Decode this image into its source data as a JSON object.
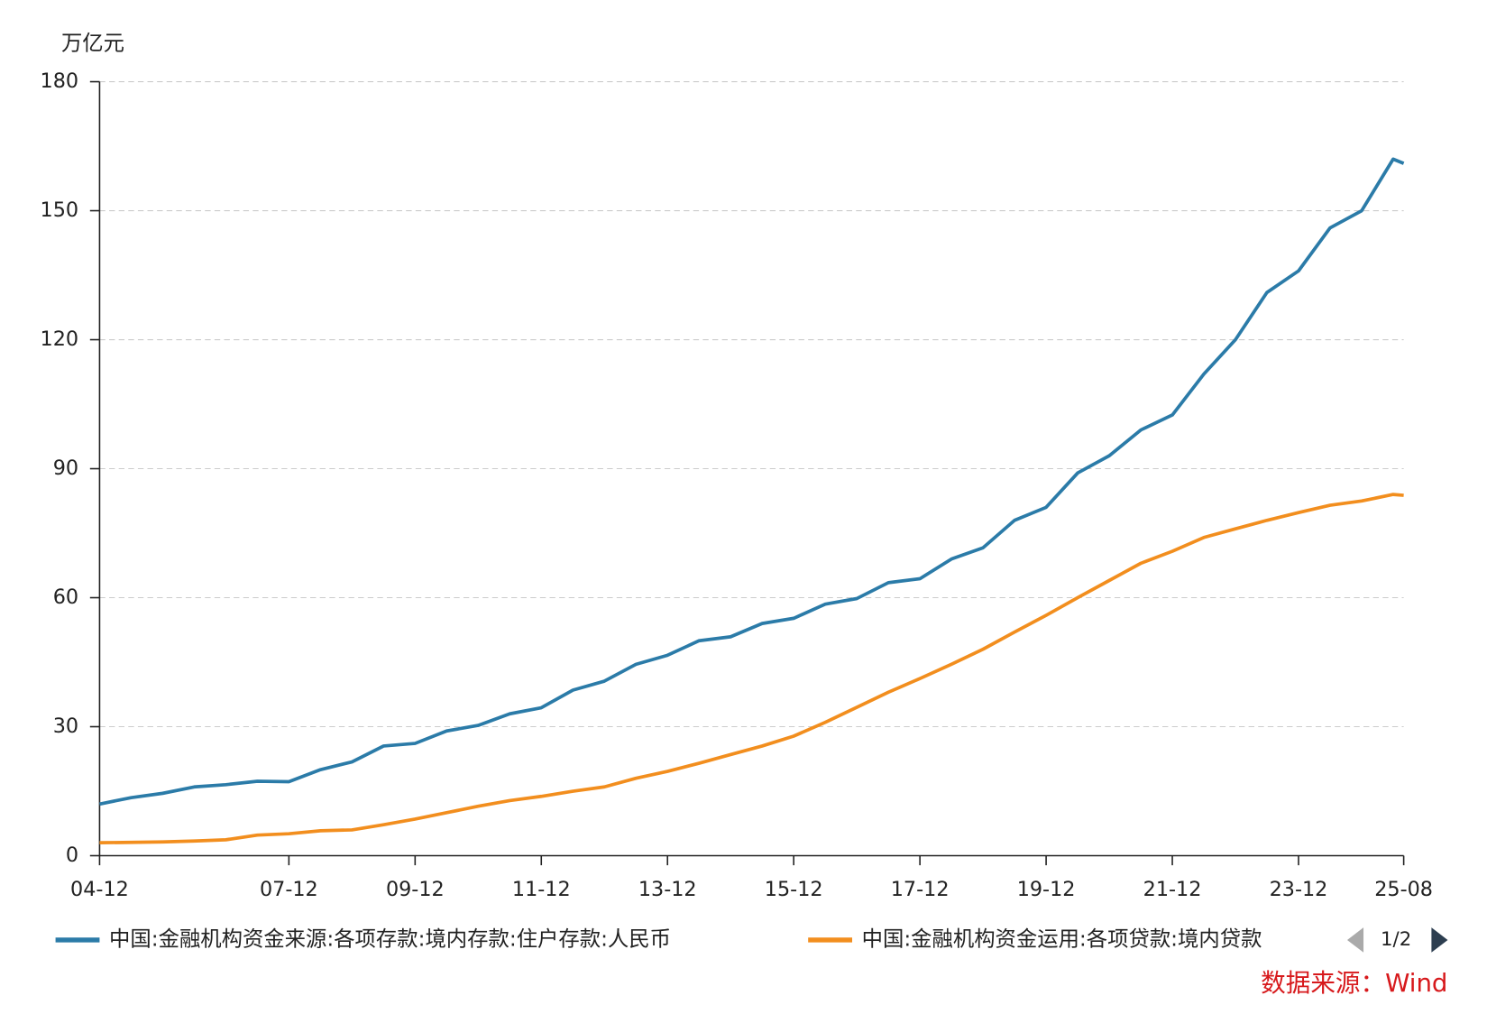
{
  "chart_data": {
    "type": "line",
    "y_unit": "万亿元",
    "x": [
      "04-12",
      "05-06",
      "05-12",
      "06-06",
      "06-12",
      "07-06",
      "07-12",
      "08-06",
      "08-12",
      "09-06",
      "09-12",
      "10-06",
      "10-12",
      "11-06",
      "11-12",
      "12-06",
      "12-12",
      "13-06",
      "13-12",
      "14-06",
      "14-12",
      "15-06",
      "15-12",
      "16-06",
      "16-12",
      "17-06",
      "17-12",
      "18-06",
      "18-12",
      "19-06",
      "19-12",
      "20-06",
      "20-12",
      "21-06",
      "21-12",
      "22-06",
      "22-12",
      "23-06",
      "23-12",
      "24-06",
      "24-12",
      "25-06",
      "25-08"
    ],
    "series": [
      {
        "name": "中国:金融机构资金来源:各项存款:境内存款:住户存款:人民币",
        "color": "#2b7ba8",
        "values": [
          12,
          13.5,
          14.5,
          16,
          16.5,
          17.3,
          17.2,
          20,
          21.8,
          25.5,
          26.1,
          29,
          30.3,
          33,
          34.4,
          38.5,
          40.6,
          44.5,
          46.6,
          50,
          50.9,
          54,
          55.2,
          58.5,
          59.8,
          63.5,
          64.4,
          69,
          71.6,
          78,
          81,
          89,
          93,
          99,
          102.5,
          112,
          120,
          131,
          136,
          146,
          150,
          162,
          161
        ]
      },
      {
        "name": "中国:金融机构资金运用:各项贷款:境内贷款",
        "color": "#f28e1e",
        "values": [
          3,
          3.1,
          3.2,
          3.4,
          3.7,
          4.8,
          5.1,
          5.8,
          6,
          7.2,
          8.5,
          10,
          11.5,
          12.8,
          13.8,
          15,
          16,
          18,
          19.6,
          21.5,
          23.5,
          25.5,
          27.8,
          31,
          34.5,
          38,
          41.2,
          44.5,
          48,
          52,
          55.9,
          60,
          64,
          68,
          70.8,
          74,
          76,
          78,
          79.8,
          81.5,
          82.5,
          84,
          83.8
        ]
      }
    ],
    "xlim": [
      "04-12",
      "25-08"
    ],
    "xticks": [
      "04-12",
      "07-12",
      "09-12",
      "11-12",
      "13-12",
      "15-12",
      "17-12",
      "19-12",
      "21-12",
      "23-12",
      "25-08"
    ],
    "ylim": [
      0,
      180
    ],
    "yticks": [
      0,
      30,
      60,
      90,
      120,
      150,
      180
    ],
    "grid": true,
    "legend_page": "1/2",
    "source": "数据来源：Wind"
  }
}
